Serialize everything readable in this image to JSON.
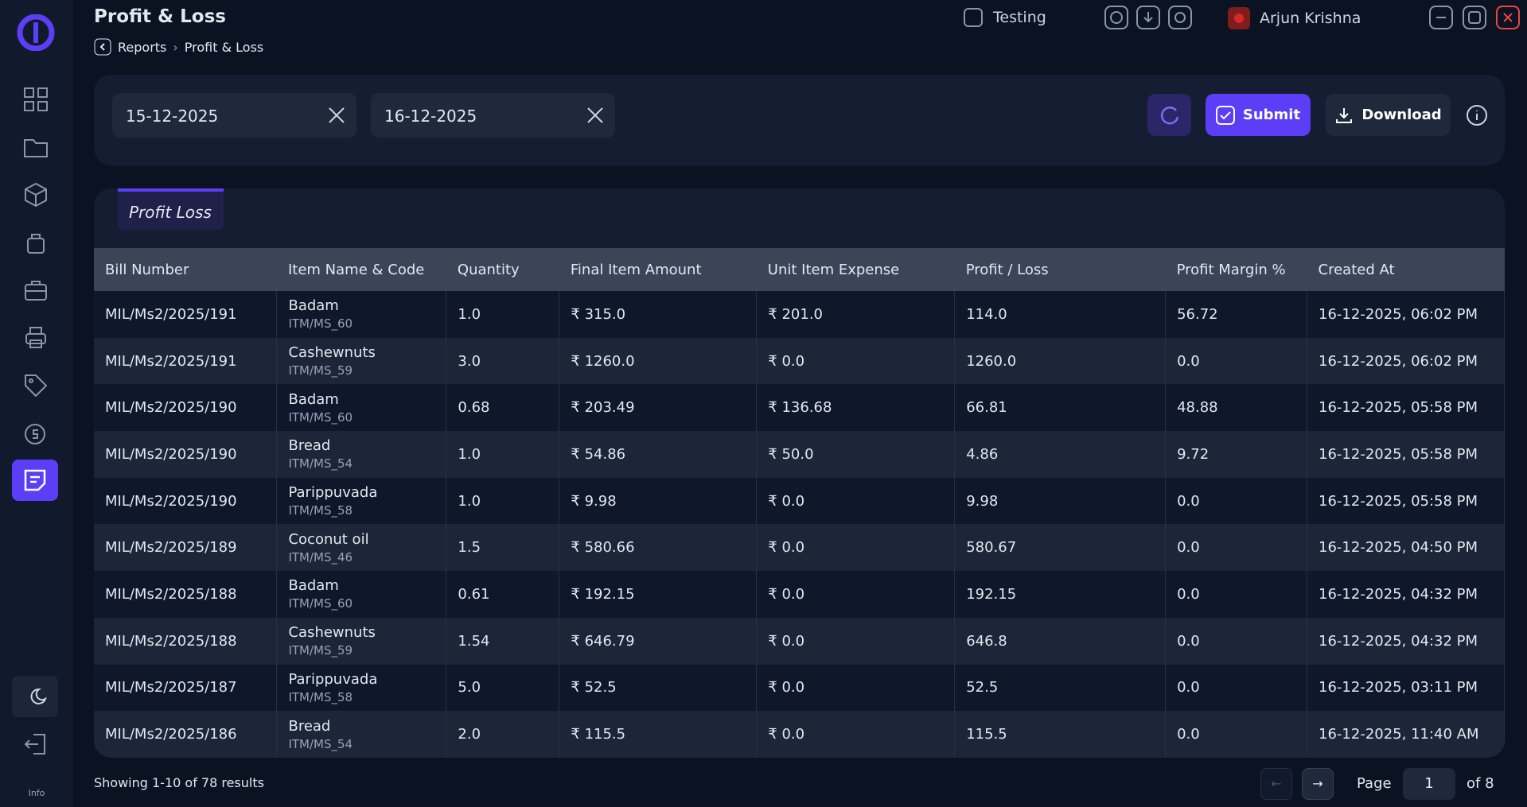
{
  "header": {
    "title": "Profit & Loss",
    "breadcrumb": [
      "Reports",
      "Profit & Loss"
    ],
    "store": "Testing",
    "user": "Arjun Krishna"
  },
  "filters": {
    "from": "15-12-2025",
    "to": "16-12-2025",
    "submit": "Submit",
    "download": "Download"
  },
  "tab": "Profit Loss",
  "table": {
    "columns": [
      "Bill Number",
      "Item Name & Code",
      "Quantity",
      "Final Item Amount",
      "Unit Item Expense",
      "Profit / Loss",
      "Profit Margin %",
      "Created At"
    ],
    "rows": [
      {
        "bill": "MIL/Ms2/2025/191",
        "item": "Badam",
        "code": "ITM/MS_60",
        "quantity": "1.0",
        "final_amount": "₹ 315.0",
        "unit_expense": "₹ 201.0",
        "profit_loss": "114.0",
        "margin": "56.72",
        "created_at": "16-12-2025, 06:02 PM"
      },
      {
        "bill": "MIL/Ms2/2025/191",
        "item": "Cashewnuts",
        "code": "ITM/MS_59",
        "quantity": "3.0",
        "final_amount": "₹ 1260.0",
        "unit_expense": "₹ 0.0",
        "profit_loss": "1260.0",
        "margin": "0.0",
        "created_at": "16-12-2025, 06:02 PM"
      },
      {
        "bill": "MIL/Ms2/2025/190",
        "item": "Badam",
        "code": "ITM/MS_60",
        "quantity": "0.68",
        "final_amount": "₹ 203.49",
        "unit_expense": "₹ 136.68",
        "profit_loss": "66.81",
        "margin": "48.88",
        "created_at": "16-12-2025, 05:58 PM"
      },
      {
        "bill": "MIL/Ms2/2025/190",
        "item": "Bread",
        "code": "ITM/MS_54",
        "quantity": "1.0",
        "final_amount": "₹ 54.86",
        "unit_expense": "₹ 50.0",
        "profit_loss": "4.86",
        "margin": "9.72",
        "created_at": "16-12-2025, 05:58 PM"
      },
      {
        "bill": "MIL/Ms2/2025/190",
        "item": "Parippuvada",
        "code": "ITM/MS_58",
        "quantity": "1.0",
        "final_amount": "₹ 9.98",
        "unit_expense": "₹ 0.0",
        "profit_loss": "9.98",
        "margin": "0.0",
        "created_at": "16-12-2025, 05:58 PM"
      },
      {
        "bill": "MIL/Ms2/2025/189",
        "item": "Coconut oil",
        "code": "ITM/MS_46",
        "quantity": "1.5",
        "final_amount": "₹ 580.66",
        "unit_expense": "₹ 0.0",
        "profit_loss": "580.67",
        "margin": "0.0",
        "created_at": "16-12-2025, 04:50 PM"
      },
      {
        "bill": "MIL/Ms2/2025/188",
        "item": "Badam",
        "code": "ITM/MS_60",
        "quantity": "0.61",
        "final_amount": "₹ 192.15",
        "unit_expense": "₹ 0.0",
        "profit_loss": "192.15",
        "margin": "0.0",
        "created_at": "16-12-2025, 04:32 PM"
      },
      {
        "bill": "MIL/Ms2/2025/188",
        "item": "Cashewnuts",
        "code": "ITM/MS_59",
        "quantity": "1.54",
        "final_amount": "₹ 646.79",
        "unit_expense": "₹ 0.0",
        "profit_loss": "646.8",
        "margin": "0.0",
        "created_at": "16-12-2025, 04:32 PM"
      },
      {
        "bill": "MIL/Ms2/2025/187",
        "item": "Parippuvada",
        "code": "ITM/MS_58",
        "quantity": "5.0",
        "final_amount": "₹ 52.5",
        "unit_expense": "₹ 0.0",
        "profit_loss": "52.5",
        "margin": "0.0",
        "created_at": "16-12-2025, 03:11 PM"
      },
      {
        "bill": "MIL/Ms2/2025/186",
        "item": "Bread",
        "code": "ITM/MS_54",
        "quantity": "2.0",
        "final_amount": "₹ 115.5",
        "unit_expense": "₹ 0.0",
        "profit_loss": "115.5",
        "margin": "0.0",
        "created_at": "16-12-2025, 11:40 AM"
      }
    ]
  },
  "footer": {
    "showing": "Showing 1-10 of 78 results",
    "page_label": "Page",
    "page": "1",
    "of": "of 8"
  },
  "sidebar": {
    "info": "Info"
  }
}
